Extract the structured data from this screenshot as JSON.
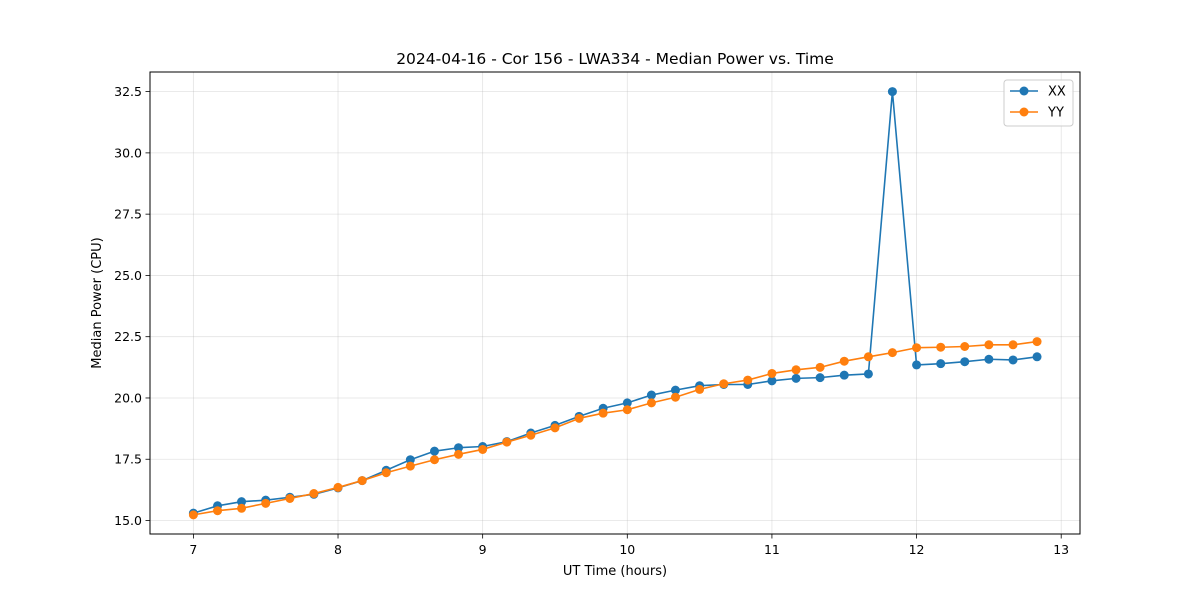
{
  "chart_data": {
    "type": "line",
    "title": "2024-04-16 - Cor 156 - LWA334 - Median Power vs. Time",
    "xlabel": "UT Time (hours)",
    "ylabel": "Median Power (CPU)",
    "xlim": [
      6.7,
      13.13
    ],
    "ylim": [
      14.45,
      33.3
    ],
    "xticks": [
      7,
      8,
      9,
      10,
      11,
      12,
      13
    ],
    "xtick_labels": [
      "7",
      "8",
      "9",
      "10",
      "11",
      "12",
      "13"
    ],
    "yticks": [
      15.0,
      17.5,
      20.0,
      22.5,
      25.0,
      27.5,
      30.0,
      32.5
    ],
    "ytick_labels": [
      "15.0",
      "17.5",
      "20.0",
      "22.5",
      "25.0",
      "27.5",
      "30.0",
      "32.5"
    ],
    "grid": true,
    "legend_position": "top-right",
    "x": [
      7.0,
      7.167,
      7.333,
      7.5,
      7.667,
      7.833,
      8.0,
      8.167,
      8.333,
      8.5,
      8.667,
      8.833,
      9.0,
      9.167,
      9.333,
      9.5,
      9.667,
      9.833,
      10.0,
      10.167,
      10.333,
      10.5,
      10.667,
      10.833,
      11.0,
      11.167,
      11.333,
      11.5,
      11.667,
      11.833,
      12.0,
      12.167,
      12.333,
      12.5,
      12.667,
      12.833
    ],
    "series": [
      {
        "name": "XX",
        "color": "#1f77b4",
        "values": [
          15.3,
          15.6,
          15.77,
          15.83,
          15.95,
          16.07,
          16.33,
          16.63,
          17.05,
          17.48,
          17.83,
          17.97,
          18.02,
          18.22,
          18.57,
          18.88,
          19.25,
          19.58,
          19.8,
          20.12,
          20.32,
          20.5,
          20.55,
          20.55,
          20.7,
          20.8,
          20.83,
          20.93,
          20.98,
          32.5,
          21.35,
          21.4,
          21.48,
          21.58,
          21.55,
          21.68
        ]
      },
      {
        "name": "YY",
        "color": "#ff7f0e",
        "values": [
          15.23,
          15.4,
          15.5,
          15.7,
          15.9,
          16.1,
          16.35,
          16.63,
          16.95,
          17.22,
          17.48,
          17.7,
          17.9,
          18.2,
          18.48,
          18.78,
          19.17,
          19.38,
          19.52,
          19.8,
          20.03,
          20.35,
          20.58,
          20.73,
          21.0,
          21.15,
          21.25,
          21.5,
          21.68,
          21.85,
          22.05,
          22.07,
          22.1,
          22.17,
          22.17,
          22.3
        ]
      }
    ]
  }
}
